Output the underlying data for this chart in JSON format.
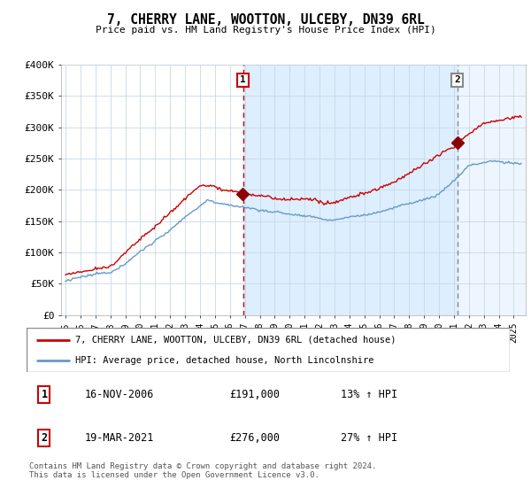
{
  "title": "7, CHERRY LANE, WOOTTON, ULCEBY, DN39 6RL",
  "subtitle": "Price paid vs. HM Land Registry's House Price Index (HPI)",
  "ylim": [
    0,
    400000
  ],
  "yticks": [
    0,
    50000,
    100000,
    150000,
    200000,
    250000,
    300000,
    350000,
    400000
  ],
  "ytick_labels": [
    "£0",
    "£50K",
    "£100K",
    "£150K",
    "£200K",
    "£250K",
    "£300K",
    "£350K",
    "£400K"
  ],
  "background_color": "#ffffff",
  "grid_color": "#c8d8e8",
  "hpi_line_color": "#6699cc",
  "price_line_color": "#cc0000",
  "shade_color": "#ddeeff",
  "vline1_color": "#cc0000",
  "vline2_color": "#888888",
  "transaction1": {
    "date": "16-NOV-2006",
    "price": "£191,000",
    "hpi_pct": "13% ↑ HPI",
    "label": "1",
    "year": 2006.88
  },
  "transaction2": {
    "date": "19-MAR-2021",
    "price": "£276,000",
    "hpi_pct": "27% ↑ HPI",
    "label": "2",
    "year": 2021.21
  },
  "legend_line1": "7, CHERRY LANE, WOOTTON, ULCEBY, DN39 6RL (detached house)",
  "legend_line2": "HPI: Average price, detached house, North Lincolnshire",
  "footnote": "Contains HM Land Registry data © Crown copyright and database right 2024.\nThis data is licensed under the Open Government Licence v3.0.",
  "marker1_value": 191000,
  "marker2_value": 276000,
  "year_start": 1995,
  "year_end": 2025
}
